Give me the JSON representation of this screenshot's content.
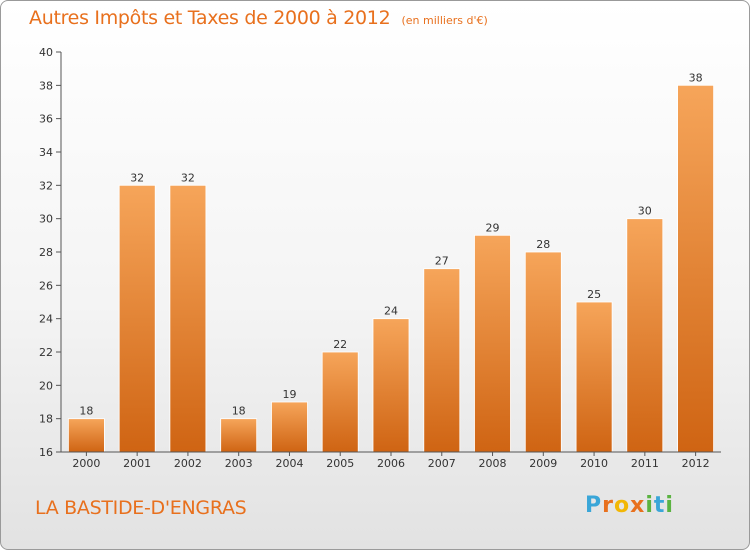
{
  "header": {
    "title": "Autres Impôts et Taxes de 2000 à 2012",
    "unit": "(en milliers d'€)"
  },
  "footer": {
    "commune": "LA BASTIDE-D'ENGRAS",
    "logo_letters": [
      "P",
      "r",
      "o",
      "x",
      "i",
      "t",
      "i"
    ],
    "logo_colors": [
      "#3aa6d8",
      "#e8701d",
      "#f2b705",
      "#e8701d",
      "#5bb341",
      "#3aa6d8",
      "#5bb341"
    ]
  },
  "colors": {
    "bar_top": "#f6a55a",
    "bar_bottom": "#cf6413",
    "accent": "#e8701d"
  },
  "chart_data": {
    "type": "bar",
    "title": "Autres Impôts et Taxes de 2000 à 2012",
    "subtitle": "(en milliers d'€)",
    "xlabel": "",
    "ylabel": "",
    "categories": [
      "2000",
      "2001",
      "2002",
      "2003",
      "2004",
      "2005",
      "2006",
      "2007",
      "2008",
      "2009",
      "2010",
      "2011",
      "2012"
    ],
    "values": [
      18,
      32,
      32,
      18,
      19,
      22,
      24,
      27,
      29,
      28,
      25,
      30,
      38
    ],
    "ylim": [
      16,
      40
    ],
    "yticks": [
      16,
      18,
      20,
      22,
      24,
      26,
      28,
      30,
      32,
      34,
      36,
      38,
      40
    ],
    "grid": false,
    "legend": "none"
  }
}
